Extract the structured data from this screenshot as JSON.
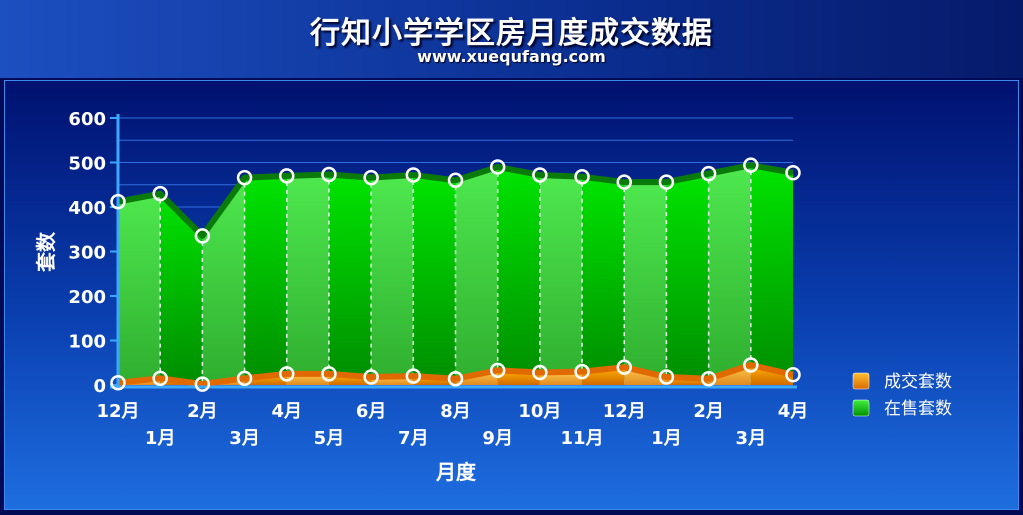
{
  "header": {
    "title": "行知小学学区房月度成交数据",
    "subtitle": "www.xuequfang.com"
  },
  "chart_data": {
    "type": "area",
    "xlabel": "月度",
    "ylabel": "套数",
    "ylim": [
      0,
      600
    ],
    "yticks": [
      "0",
      "100",
      "200",
      "300",
      "400",
      "500",
      "600"
    ],
    "categories": [
      "12月",
      "1月",
      "2月",
      "3月",
      "4月",
      "5月",
      "6月",
      "7月",
      "8月",
      "9月",
      "10月",
      "11月",
      "12月",
      "1月",
      "2月",
      "3月",
      "4月"
    ],
    "series": [
      {
        "name": "成交套数",
        "color": "#f08a00",
        "values": [
          5,
          15,
          2,
          15,
          25,
          25,
          18,
          20,
          14,
          33,
          28,
          30,
          40,
          18,
          14,
          45,
          23
        ]
      },
      {
        "name": "在售套数",
        "color": "#00c800",
        "values": [
          412,
          430,
          335,
          466,
          470,
          473,
          466,
          472,
          460,
          490,
          472,
          468,
          456,
          456,
          475,
          494,
          477
        ]
      }
    ],
    "legend_position": "right",
    "grid": true
  }
}
